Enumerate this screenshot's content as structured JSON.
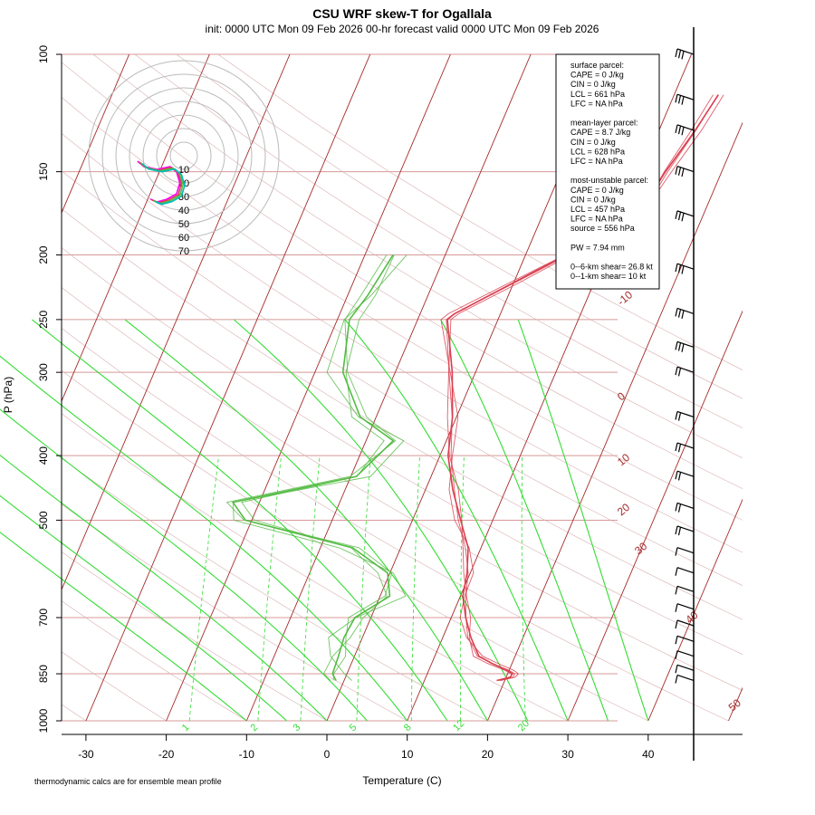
{
  "chart_data": {
    "type": "skew-t",
    "title": "CSU WRF skew-T for Ogallala",
    "subtitle": "init: 0000 UTC Mon 09 Feb 2026     00-hr forecast valid 0000 UTC Mon 09 Feb 2026",
    "xlabel": "Temperature (C)",
    "ylabel": "P (hPa)",
    "xticks": [
      -30,
      -20,
      -10,
      0,
      10,
      20,
      30,
      40
    ],
    "pressure_ticks": [
      100,
      150,
      200,
      250,
      300,
      400,
      500,
      700,
      850,
      1000
    ],
    "xlim": [
      -33,
      45
    ],
    "plim": [
      1000,
      100
    ],
    "isotherm_labels": [
      -10,
      0,
      10,
      20,
      30,
      40,
      50
    ],
    "mixing_ratio_labels": [
      1,
      2,
      3,
      5,
      8,
      12,
      20
    ],
    "series": [
      {
        "name": "",
        "color": "#d94050",
        "points": [
          [
            870,
            19.0
          ],
          [
            860,
            20.5
          ],
          [
            850,
            20.6
          ],
          [
            840,
            19.8
          ],
          [
            820,
            17.5
          ],
          [
            800,
            15.5
          ],
          [
            750,
            13.5
          ],
          [
            700,
            11.8
          ],
          [
            650,
            10.3
          ],
          [
            600,
            9.6
          ],
          [
            550,
            8.4
          ],
          [
            500,
            6.0
          ],
          [
            450,
            3.4
          ],
          [
            400,
            1.0
          ],
          [
            350,
            -0.5
          ],
          [
            300,
            -2.9
          ],
          [
            250,
            -6.3
          ],
          [
            245,
            -5.7
          ],
          [
            220,
            0.0
          ],
          [
            200,
            5.0
          ],
          [
            180,
            9.5
          ],
          [
            160,
            12.5
          ],
          [
            150,
            13.0
          ],
          [
            130,
            14.5
          ],
          [
            115,
            15.5
          ]
        ]
      },
      {
        "name": "",
        "color": "#55bb45",
        "points": [
          [
            870,
            -1.0
          ],
          [
            850,
            -1.8
          ],
          [
            800,
            -2.0
          ],
          [
            750,
            -2.3
          ],
          [
            700,
            -2.0
          ],
          [
            650,
            1.2
          ],
          [
            600,
            -0.3
          ],
          [
            550,
            -6.0
          ],
          [
            500,
            -20.8
          ],
          [
            470,
            -23.3
          ],
          [
            430,
            -9.3
          ],
          [
            380,
            -6.6
          ],
          [
            350,
            -12.0
          ],
          [
            300,
            -16.5
          ],
          [
            250,
            -18.5
          ],
          [
            230,
            -17.5
          ],
          [
            200,
            -16.5
          ]
        ]
      }
    ],
    "hodograph_rings_kt": [
      10,
      20,
      30,
      40,
      50,
      60,
      70
    ],
    "wind_barbs": "right-side column, 100-870 hPa"
  },
  "info_box": {
    "lines": [
      "surface parcel:",
      "CAPE = 0 J/kg",
      "CIN = 0 J/kg",
      "LCL = 661 hPa",
      "LFC = NA hPa",
      "",
      "mean-layer parcel:",
      "CAPE = 8.7 J/kg",
      "CIN = 0 J/kg",
      "LCL = 628 hPa",
      "LFC = NA hPa",
      "",
      "most-unstable parcel:",
      "CAPE = 0 J/kg",
      "CIN = 0 J/kg",
      "LCL = 457 hPa",
      "LFC = NA hPa",
      "source = 556 hPa",
      "",
      "PW =  7.94 mm",
      "",
      "0--6-km shear= 26.8 kt",
      "0--1-km shear= 10 kt"
    ]
  },
  "footnote": "thermodynamic calcs are for ensemble mean profile",
  "colors": {
    "isotherm": "#a52a2a",
    "isobar": "#d89898",
    "dry_adiabat": "#d8b0b0",
    "moist_adiabat": "#33dd33",
    "mixing_ratio": "#33dd33",
    "temperature": "#d94050",
    "dewpoint": "#55bb45",
    "hodo_ring": "#bbbbbb"
  }
}
